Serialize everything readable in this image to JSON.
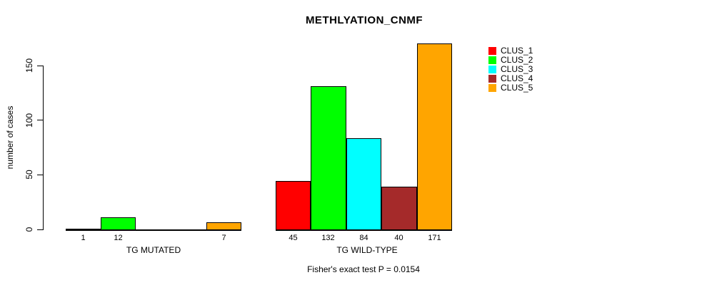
{
  "title": "METHLYATION_CNMF",
  "chart_data": {
    "type": "bar",
    "title": "METHLYATION_CNMF",
    "ylabel": "number of cases",
    "xlabel": "",
    "yticks": [
      0,
      50,
      100,
      150
    ],
    "ylim": [
      0,
      171
    ],
    "grid": false,
    "legend_position": "right-outside",
    "series": [
      "CLUS_1",
      "CLUS_2",
      "CLUS_3",
      "CLUS_4",
      "CLUS_5"
    ],
    "colors": [
      "#FF0000",
      "#00FF00",
      "#00FFFF",
      "#A52A2A",
      "#FFA500"
    ],
    "groups": [
      {
        "label": "TG MUTATED",
        "values": [
          1,
          12,
          0,
          0,
          7
        ]
      },
      {
        "label": "TG WILD-TYPE",
        "values": [
          45,
          132,
          84,
          40,
          171
        ]
      }
    ],
    "footnote": "Fisher's exact test P = 0.0154"
  },
  "legend": {
    "entries": [
      {
        "label": "CLUS_1",
        "color": "#FF0000"
      },
      {
        "label": "CLUS_2",
        "color": "#00FF00"
      },
      {
        "label": "CLUS_3",
        "color": "#00FFFF"
      },
      {
        "label": "CLUS_4",
        "color": "#A52A2A"
      },
      {
        "label": "CLUS_5",
        "color": "#FFA500"
      }
    ]
  },
  "footer": {
    "text": "Fisher's exact test P = 0.0154"
  }
}
